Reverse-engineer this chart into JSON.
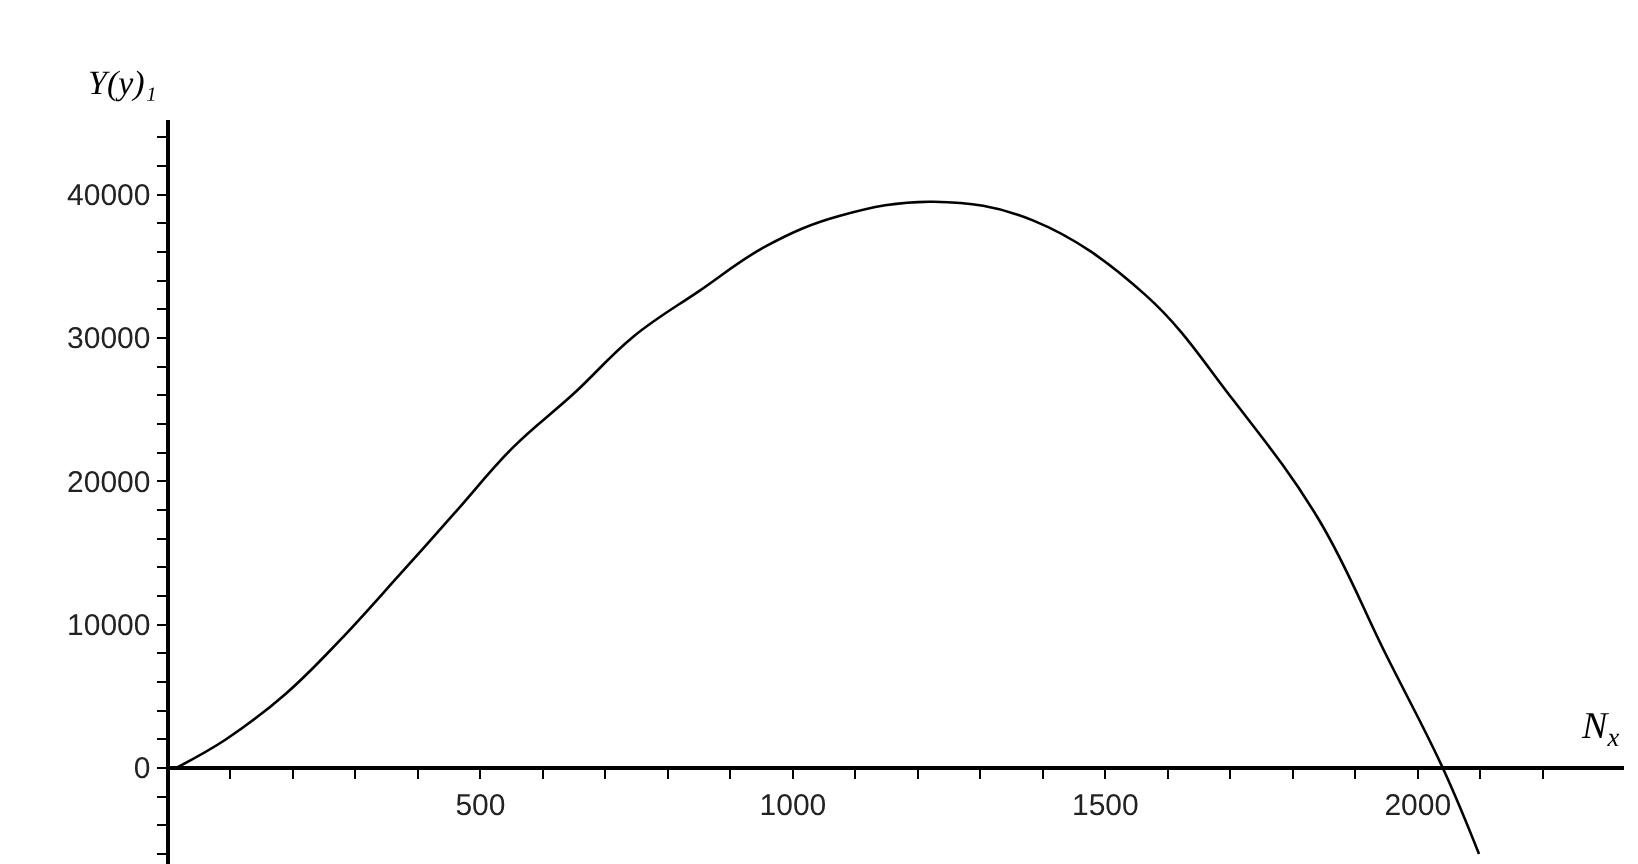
{
  "chart_data": {
    "type": "line",
    "xlabel": "N$_{x}$",
    "ylabel": "Y(y)₁",
    "x": [
      13,
      93,
      189,
      275,
      371,
      457,
      553,
      649,
      745,
      851,
      957,
      1074,
      1225,
      1384,
      1564,
      1704,
      1842,
      1948,
      2040,
      2098
    ],
    "series": [
      {
        "color": "#000000",
        "values": [
          0,
          2000,
          5200,
          8900,
          13500,
          17700,
          22400,
          26100,
          30100,
          33300,
          36400,
          38500,
          39500,
          38200,
          33000,
          25700,
          17300,
          8000,
          0,
          -6000
        ]
      }
    ],
    "xlim": [
      0,
      2330
    ],
    "ylim": [
      -6700,
      45200
    ],
    "xticks": [
      {
        "value": 100,
        "label": null
      },
      {
        "value": 200,
        "label": null
      },
      {
        "value": 300,
        "label": null
      },
      {
        "value": 400,
        "label": null
      },
      500,
      {
        "value": 600,
        "label": null
      },
      {
        "value": 700,
        "label": null
      },
      {
        "value": 800,
        "label": null
      },
      {
        "value": 900,
        "label": null
      },
      1000,
      {
        "value": 1100,
        "label": null
      },
      {
        "value": 1200,
        "label": null
      },
      {
        "value": 1300,
        "label": null
      },
      {
        "value": 1400,
        "label": null
      },
      1500,
      {
        "value": 1600,
        "label": null
      },
      {
        "value": 1700,
        "label": null
      },
      {
        "value": 1800,
        "label": null
      },
      {
        "value": 1900,
        "label": null
      },
      2000,
      {
        "value": 2100,
        "label": null
      },
      {
        "value": 2200,
        "label": null
      }
    ],
    "yticks": [
      {
        "value": -6000,
        "label": null
      },
      {
        "value": -4000,
        "label": null
      },
      {
        "value": -2000,
        "label": null
      },
      0,
      {
        "value": 2000,
        "label": null
      },
      {
        "value": 4000,
        "label": null
      },
      {
        "value": 6000,
        "label": null
      },
      {
        "value": 8000,
        "label": null
      },
      10000,
      {
        "value": 12000,
        "label": null
      },
      {
        "value": 14000,
        "label": null
      },
      {
        "value": 16000,
        "label": null
      },
      {
        "value": 18000,
        "label": null
      },
      20000,
      {
        "value": 22000,
        "label": null
      },
      {
        "value": 24000,
        "label": null
      },
      {
        "value": 26000,
        "label": null
      },
      {
        "value": 28000,
        "label": null
      },
      30000,
      {
        "value": 32000,
        "label": null
      },
      {
        "value": 34000,
        "label": null
      },
      {
        "value": 36000,
        "label": null
      },
      {
        "value": 38000,
        "label": null
      },
      40000,
      {
        "value": 42000,
        "label": null
      },
      {
        "value": 44000,
        "label": null
      }
    ],
    "grid": false,
    "marker": "none",
    "line_style": "solid"
  }
}
